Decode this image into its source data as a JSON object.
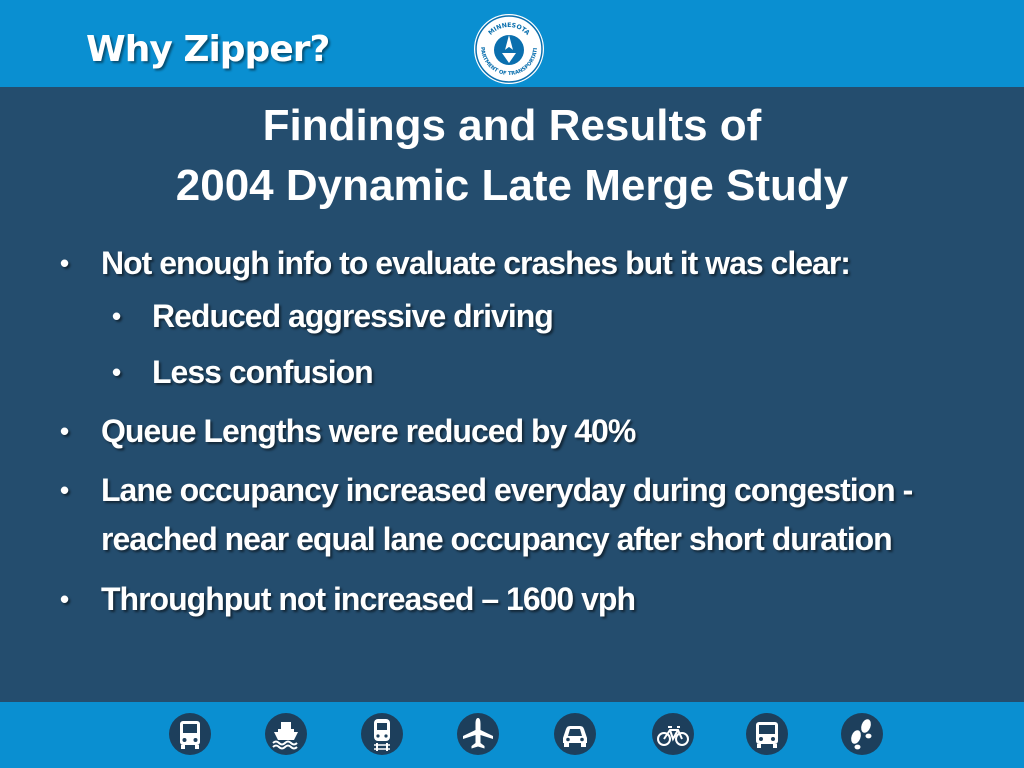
{
  "header": {
    "title": "Why Zipper?",
    "logo": {
      "name": "mndot-logo-icon",
      "text_top": "MINNESOTA",
      "text_bottom": "DEPARTMENT OF TRANSPORTATION"
    },
    "background_color": "#0a8fd1"
  },
  "slide": {
    "heading_line1": "Findings and Results of",
    "heading_line2": "2004 Dynamic Late Merge Study",
    "background_color": "#244d6e",
    "bullets": [
      {
        "level": 1,
        "text": "Not enough info to evaluate crashes but it was clear:"
      },
      {
        "level": 2,
        "text": "Reduced aggressive driving"
      },
      {
        "level": 2,
        "text": "Less confusion"
      },
      {
        "level": 1,
        "text": "Queue Lengths were reduced by 40%"
      },
      {
        "level": 1,
        "text": "Lane occupancy increased everyday during congestion - reached near equal lane occupancy after short duration"
      },
      {
        "level": 1,
        "text": "Throughput not increased – 1600 vph"
      }
    ],
    "bullet_char": "•"
  },
  "footer": {
    "icons": [
      "bus-icon",
      "ferry-icon",
      "train-icon",
      "airplane-icon",
      "car-icon",
      "bicycle-icon",
      "transit-bus-icon",
      "footprints-icon"
    ]
  }
}
